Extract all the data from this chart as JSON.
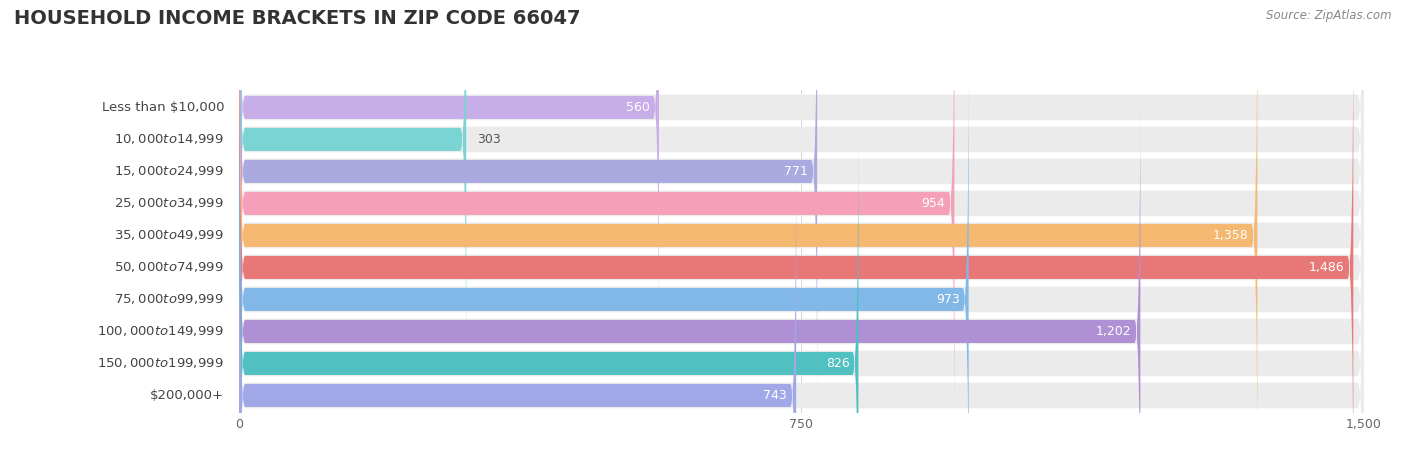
{
  "title": "HOUSEHOLD INCOME BRACKETS IN ZIP CODE 66047",
  "source": "Source: ZipAtlas.com",
  "categories": [
    "Less than $10,000",
    "$10,000 to $14,999",
    "$15,000 to $24,999",
    "$25,000 to $34,999",
    "$35,000 to $49,999",
    "$50,000 to $74,999",
    "$75,000 to $99,999",
    "$100,000 to $149,999",
    "$150,000 to $199,999",
    "$200,000+"
  ],
  "values": [
    560,
    303,
    771,
    954,
    1358,
    1486,
    973,
    1202,
    826,
    743
  ],
  "bar_colors": [
    "#c8aee8",
    "#7ad4d4",
    "#aaaae0",
    "#f5a0b8",
    "#f5b870",
    "#e87878",
    "#82b8e8",
    "#b090d4",
    "#50c0c0",
    "#a0a8e8"
  ],
  "xlim": [
    0,
    1500
  ],
  "xticks": [
    0,
    750,
    1500
  ],
  "background_color": "#ffffff",
  "row_bg_color": "#ebebeb",
  "title_fontsize": 14,
  "label_fontsize": 9.5,
  "value_fontsize": 9,
  "source_fontsize": 8.5,
  "value_threshold": 400
}
